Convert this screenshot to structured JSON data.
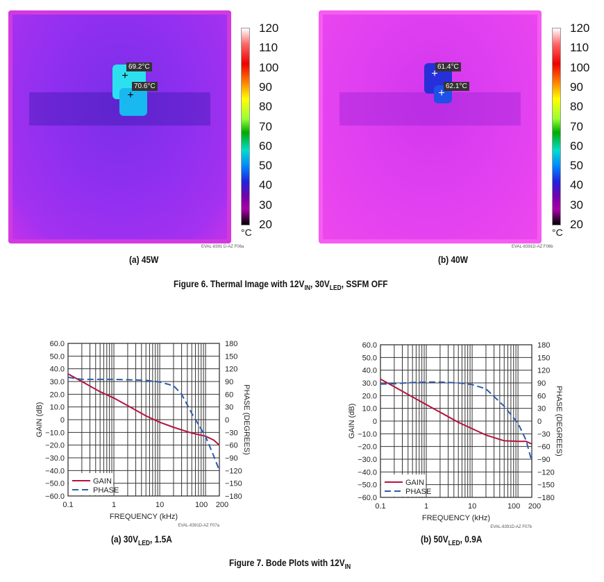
{
  "figure6": {
    "title_parts": [
      "Figure 6. Thermal Image with 12V",
      "IN",
      ", 30V",
      "LED",
      ", SSFM OFF"
    ],
    "colorbar": {
      "ticks": [
        "120",
        "110",
        "100",
        "90",
        "80",
        "70",
        "60",
        "50",
        "40",
        "30",
        "20"
      ],
      "unit": "°C"
    },
    "panels": [
      {
        "caption": "(a) 45W",
        "ref": "EVAL-8391 D-AZ F06a",
        "markers": [
          "69.2°C",
          "70.6°C"
        ]
      },
      {
        "caption": "(b) 40W",
        "ref": "EVAL-8391D-AZ F06b",
        "markers": [
          "61.4°C",
          "62.1°C"
        ]
      }
    ]
  },
  "figure7": {
    "title_parts": [
      "Figure 7. Bode Plots with 12V",
      "IN"
    ],
    "captions": [
      [
        "(a) 30V",
        "LED",
        ", 1.5A"
      ],
      [
        "(b) 50V",
        "LED",
        ", 0.9A"
      ]
    ]
  },
  "chart_data": [
    {
      "type": "line",
      "xscale": "log",
      "xlim": [
        0.1,
        200
      ],
      "ylim": [
        -60,
        60
      ],
      "y2lim": [
        -180,
        180
      ],
      "xlabel": "FREQUENCY (kHz)",
      "ylabel": "GAIN (dB)",
      "y2label": "PHASE (DEGREES)",
      "xticks": [
        "0.1",
        "1",
        "10",
        "100",
        "200"
      ],
      "yticks": [
        "60.0",
        "50.0",
        "40.0",
        "30.0",
        "20.0",
        "10.0",
        "0",
        "−10.0",
        "−20.0",
        "−30.0",
        "−40.0",
        "−50.0",
        "−60.0"
      ],
      "y2ticks": [
        "180",
        "150",
        "120",
        "90",
        "60",
        "30",
        "0",
        "−30",
        "−60",
        "−90",
        "−120",
        "−150",
        "−180"
      ],
      "grid": true,
      "legend": "bottom-left",
      "ref": "EVAL-8391D-AZ F07a",
      "series": [
        {
          "name": "GAIN",
          "axis": "left",
          "color": "#b5123e",
          "style": "solid",
          "x": [
            0.1,
            0.2,
            0.5,
            1,
            2,
            5,
            10,
            20,
            50,
            100,
            150,
            200
          ],
          "y": [
            36,
            30,
            22,
            17,
            11,
            3,
            -2,
            -6,
            -10.5,
            -13,
            -16,
            -20
          ]
        },
        {
          "name": "PHASE",
          "axis": "right",
          "color": "#2a5cb0",
          "style": "dashed",
          "x": [
            0.1,
            0.2,
            0.5,
            1,
            5,
            10,
            20,
            30,
            50,
            100,
            150,
            200
          ],
          "y": [
            100,
            95,
            95,
            95,
            93,
            89,
            80,
            60,
            15,
            -40,
            -85,
            -120
          ]
        }
      ]
    },
    {
      "type": "line",
      "xscale": "log",
      "xlim": [
        0.1,
        200
      ],
      "ylim": [
        -60,
        60
      ],
      "y2lim": [
        -180,
        180
      ],
      "xlabel": "FREQUENCY (kHz)",
      "ylabel": "GAIN (dB)",
      "y2label": "PHASE (DEGREES)",
      "xticks": [
        "0.1",
        "1",
        "10",
        "100",
        "200"
      ],
      "yticks": [
        "60.0",
        "50.0",
        "40.0",
        "30.0",
        "20.0",
        "10.0",
        "0",
        "−10.0",
        "−20.0",
        "−30.0",
        "−40.0",
        "−50.0",
        "−60.0"
      ],
      "y2ticks": [
        "180",
        "150",
        "120",
        "90",
        "60",
        "30",
        "0",
        "−30",
        "−60",
        "−90",
        "−120",
        "−150",
        "−180"
      ],
      "grid": true,
      "legend": "bottom-left",
      "ref": "EVAL-8391D-AZ F07b",
      "series": [
        {
          "name": "GAIN",
          "axis": "left",
          "color": "#b5123e",
          "style": "solid",
          "x": [
            0.1,
            0.2,
            0.5,
            1,
            2,
            5,
            10,
            20,
            50,
            100,
            150,
            200
          ],
          "y": [
            33,
            27,
            19,
            13,
            7,
            -1,
            -6,
            -11,
            -15.5,
            -16,
            -16,
            -18
          ]
        },
        {
          "name": "PHASE",
          "axis": "right",
          "color": "#2a5cb0",
          "style": "dashed",
          "x": [
            0.1,
            0.2,
            0.5,
            1,
            2,
            5,
            10,
            20,
            50,
            100,
            150,
            200
          ],
          "y": [
            87,
            88,
            91,
            92,
            92,
            90,
            86,
            76,
            35,
            -5,
            -45,
            -95
          ]
        }
      ]
    }
  ]
}
